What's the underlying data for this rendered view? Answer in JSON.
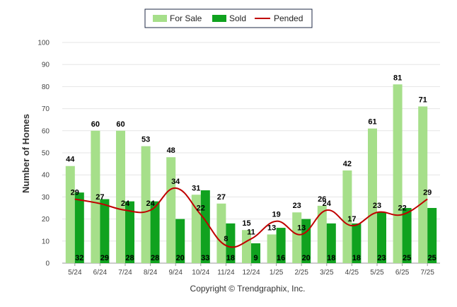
{
  "chart_data": {
    "type": "bar",
    "ylabel": "Number of Homes",
    "ylim": [
      0,
      100
    ],
    "yticks": [
      0,
      10,
      20,
      30,
      40,
      50,
      60,
      70,
      80,
      90,
      100
    ],
    "grid": true,
    "legend_position": "top-center",
    "categories": [
      "5/24",
      "6/24",
      "7/24",
      "8/24",
      "9/24",
      "10/24",
      "11/24",
      "12/24",
      "1/25",
      "2/25",
      "3/25",
      "4/25",
      "5/25",
      "6/25",
      "7/25"
    ],
    "series": [
      {
        "name": "For Sale",
        "kind": "bar",
        "color": "#a6df8a",
        "values": [
          44,
          60,
          60,
          53,
          48,
          31,
          27,
          15,
          13,
          23,
          26,
          42,
          61,
          81,
          71
        ]
      },
      {
        "name": "Sold",
        "kind": "bar",
        "color": "#10a21f",
        "values": [
          32,
          29,
          28,
          28,
          20,
          33,
          18,
          9,
          16,
          20,
          18,
          18,
          23,
          25,
          25
        ]
      },
      {
        "name": "Pended",
        "kind": "line",
        "color": "#c00000",
        "values": [
          29,
          27,
          24,
          24,
          34,
          22,
          8,
          11,
          19,
          13,
          24,
          17,
          23,
          22,
          29
        ]
      }
    ],
    "copyright": "Copyright © Trendgraphix, Inc."
  }
}
